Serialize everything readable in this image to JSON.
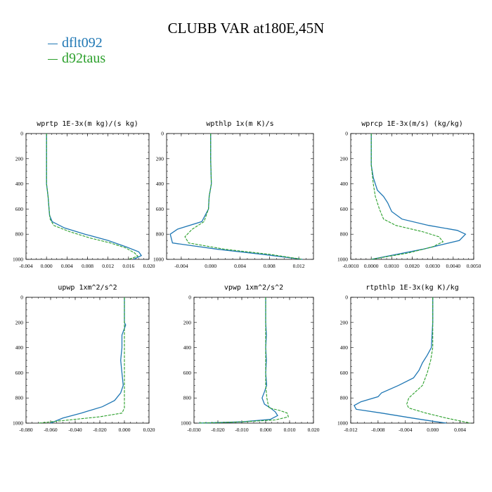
{
  "title": "CLUBB VAR at180E,45N",
  "legend": [
    {
      "name": "dflt092",
      "color": "#1f77b4"
    },
    {
      "name": "d92taus",
      "color": "#2ca02c"
    }
  ],
  "chart_data": [
    {
      "type": "line",
      "title": "wprtp  1E-3x(m kg)/(s kg)",
      "xlim": [
        -0.004,
        0.02
      ],
      "ylim": [
        1000,
        0
      ],
      "xticks": [
        "-0.004",
        "0.000",
        "0.004",
        "0.008",
        "0.012",
        "0.016",
        "0.020"
      ],
      "xtick_values": [
        -0.004,
        0.0,
        0.004,
        0.008,
        0.012,
        0.016,
        0.02
      ],
      "yticks": [
        "0",
        "200",
        "400",
        "600",
        "800",
        "1000"
      ],
      "series": [
        {
          "name": "dflt092",
          "x": [
            0.0,
            0.0,
            0.0,
            0.0003,
            0.0005,
            0.0006,
            0.0011,
            0.0035,
            0.0075,
            0.012,
            0.0155,
            0.018,
            0.0185,
            0.017
          ],
          "y": [
            0,
            200,
            400,
            500,
            600,
            650,
            700,
            750,
            800,
            850,
            900,
            940,
            970,
            1000
          ]
        },
        {
          "name": "d92taus",
          "x": [
            0.0,
            0.0,
            0.0,
            0.0003,
            0.0005,
            0.0007,
            0.0014,
            0.0045,
            0.0085,
            0.0125,
            0.0155,
            0.0172,
            0.0178,
            0.016
          ],
          "y": [
            0,
            200,
            400,
            500,
            600,
            680,
            730,
            780,
            830,
            870,
            910,
            950,
            975,
            1000
          ]
        }
      ]
    },
    {
      "type": "line",
      "title": "wpthlp  1x(m K)/s",
      "xlim": [
        -0.006,
        0.014
      ],
      "ylim": [
        1000,
        0
      ],
      "xticks": [
        "-0.004",
        "0.000",
        "0.004",
        "0.008",
        "0.012"
      ],
      "xtick_values": [
        -0.004,
        0.0,
        0.004,
        0.008,
        0.012
      ],
      "yticks": [
        "0",
        "200",
        "400",
        "600",
        "800",
        "1000"
      ],
      "series": [
        {
          "name": "dflt092",
          "x": [
            0.0,
            0.0,
            0.0001,
            -0.0002,
            -0.0003,
            -0.0012,
            -0.0045,
            -0.0055,
            -0.0052,
            0.001,
            0.007,
            0.0125
          ],
          "y": [
            0,
            200,
            400,
            500,
            600,
            700,
            760,
            800,
            870,
            920,
            960,
            1000
          ]
        },
        {
          "name": "d92taus",
          "x": [
            0.0,
            0.0,
            0.0001,
            -0.0002,
            -0.0003,
            -0.0009,
            -0.0025,
            -0.0035,
            -0.003,
            0.002,
            0.008,
            0.0125
          ],
          "y": [
            0,
            200,
            400,
            500,
            600,
            700,
            760,
            820,
            870,
            920,
            960,
            1000
          ]
        }
      ]
    },
    {
      "type": "line",
      "title": "wprcp  1E-3x(m/s) (kg/kg)",
      "xlim": [
        -0.001,
        0.005
      ],
      "ylim": [
        1000,
        0
      ],
      "xticks": [
        "-0.0010",
        "0.0000",
        "0.0010",
        "0.0020",
        "0.0030",
        "0.0040",
        "0.0050"
      ],
      "xtick_values": [
        -0.001,
        0.0,
        0.001,
        0.002,
        0.003,
        0.004,
        0.005
      ],
      "yticks": [
        "0",
        "200",
        "400",
        "600",
        "800",
        "1000"
      ],
      "series": [
        {
          "name": "dflt092",
          "x": [
            0.0,
            0.0,
            0.0001,
            0.0003,
            0.0006,
            0.0008,
            0.001,
            0.0015,
            0.0028,
            0.0042,
            0.0046,
            0.0043,
            0.0025,
            0.0
          ],
          "y": [
            0,
            250,
            350,
            450,
            500,
            550,
            620,
            680,
            730,
            770,
            800,
            850,
            920,
            1000
          ]
        },
        {
          "name": "d92taus",
          "x": [
            0.0,
            0.0,
            0.0001,
            0.0002,
            0.0004,
            0.0006,
            0.0012,
            0.0025,
            0.0033,
            0.0035,
            0.003,
            0.0018,
            0.0
          ],
          "y": [
            0,
            250,
            400,
            500,
            600,
            680,
            730,
            780,
            820,
            860,
            900,
            950,
            1000
          ]
        }
      ]
    },
    {
      "type": "line",
      "title": "upwp  1xm^2/s^2",
      "xlim": [
        -0.08,
        0.02
      ],
      "ylim": [
        1000,
        0
      ],
      "xticks": [
        "-0.080",
        "-0.060",
        "-0.040",
        "-0.020",
        "0.000",
        "0.020"
      ],
      "xtick_values": [
        -0.08,
        -0.06,
        -0.04,
        -0.02,
        0.0,
        0.02
      ],
      "yticks": [
        "0",
        "200",
        "400",
        "600",
        "800",
        "1000"
      ],
      "series": [
        {
          "name": "dflt092",
          "x": [
            0.0,
            0.0,
            0.001,
            -0.002,
            -0.002,
            -0.003,
            -0.002,
            -0.001,
            -0.003,
            -0.008,
            -0.018,
            -0.035,
            -0.05,
            -0.06
          ],
          "y": [
            0,
            200,
            220,
            300,
            400,
            500,
            600,
            700,
            760,
            820,
            870,
            920,
            960,
            1000
          ]
        },
        {
          "name": "d92taus",
          "x": [
            0.0,
            0.0,
            0.0,
            0.0,
            0.0,
            0.0,
            -0.001,
            -0.002,
            -0.02,
            -0.045,
            -0.07
          ],
          "y": [
            0,
            200,
            400,
            600,
            800,
            880,
            900,
            920,
            950,
            975,
            1000
          ]
        }
      ]
    },
    {
      "type": "line",
      "title": "vpwp  1xm^2/s^2",
      "xlim": [
        -0.03,
        0.02
      ],
      "ylim": [
        1000,
        0
      ],
      "xticks": [
        "-0.030",
        "-0.020",
        "-0.010",
        "0.000",
        "0.010",
        "0.020"
      ],
      "xtick_values": [
        -0.03,
        -0.02,
        -0.01,
        0.0,
        0.01,
        0.02
      ],
      "yticks": [
        "0",
        "200",
        "400",
        "600",
        "800",
        "1000"
      ],
      "series": [
        {
          "name": "dflt092",
          "x": [
            0.0,
            0.0,
            0.0003,
            0.0,
            0.0003,
            0.0,
            0.0004,
            -0.0005,
            -0.0015,
            -0.0005,
            0.002,
            0.004,
            0.005,
            0.002,
            -0.01,
            -0.028
          ],
          "y": [
            0,
            200,
            300,
            400,
            500,
            600,
            700,
            750,
            800,
            850,
            880,
            910,
            940,
            970,
            990,
            1000
          ]
        },
        {
          "name": "d92taus",
          "x": [
            0.0,
            0.0,
            0.0,
            0.0,
            0.0,
            0.0005,
            0.001,
            0.0015,
            0.006,
            0.009,
            0.0095,
            0.004,
            -0.01,
            -0.028
          ],
          "y": [
            0,
            200,
            400,
            600,
            700,
            800,
            850,
            880,
            900,
            920,
            950,
            975,
            990,
            1000
          ]
        }
      ]
    },
    {
      "type": "line",
      "title": "rtpthlp  1E-3x(kg K)/kg",
      "xlim": [
        -0.012,
        0.006
      ],
      "ylim": [
        1000,
        0
      ],
      "xticks": [
        "-0.012",
        "-0.008",
        "-0.004",
        "0.000",
        "0.004"
      ],
      "xtick_values": [
        -0.012,
        -0.008,
        -0.004,
        0.0,
        0.004
      ],
      "yticks": [
        "0",
        "200",
        "400",
        "600",
        "800",
        "1000"
      ],
      "series": [
        {
          "name": "dflt092",
          "x": [
            0.0,
            0.0,
            -0.0002,
            -0.0008,
            -0.0015,
            -0.002,
            -0.0028,
            -0.005,
            -0.0075,
            -0.008,
            -0.0105,
            -0.0115,
            -0.0112,
            -0.0075,
            -0.003,
            0.0,
            0.002
          ],
          "y": [
            0,
            200,
            400,
            460,
            520,
            580,
            640,
            700,
            760,
            790,
            830,
            860,
            890,
            920,
            960,
            985,
            1000
          ]
        },
        {
          "name": "d92taus",
          "x": [
            0.0,
            0.0,
            0.0,
            -0.0003,
            -0.0008,
            -0.0015,
            -0.0035,
            -0.0038,
            -0.0035,
            -0.001,
            0.002,
            0.0055
          ],
          "y": [
            0,
            200,
            400,
            500,
            600,
            700,
            800,
            850,
            880,
            920,
            960,
            1000
          ]
        }
      ]
    }
  ]
}
